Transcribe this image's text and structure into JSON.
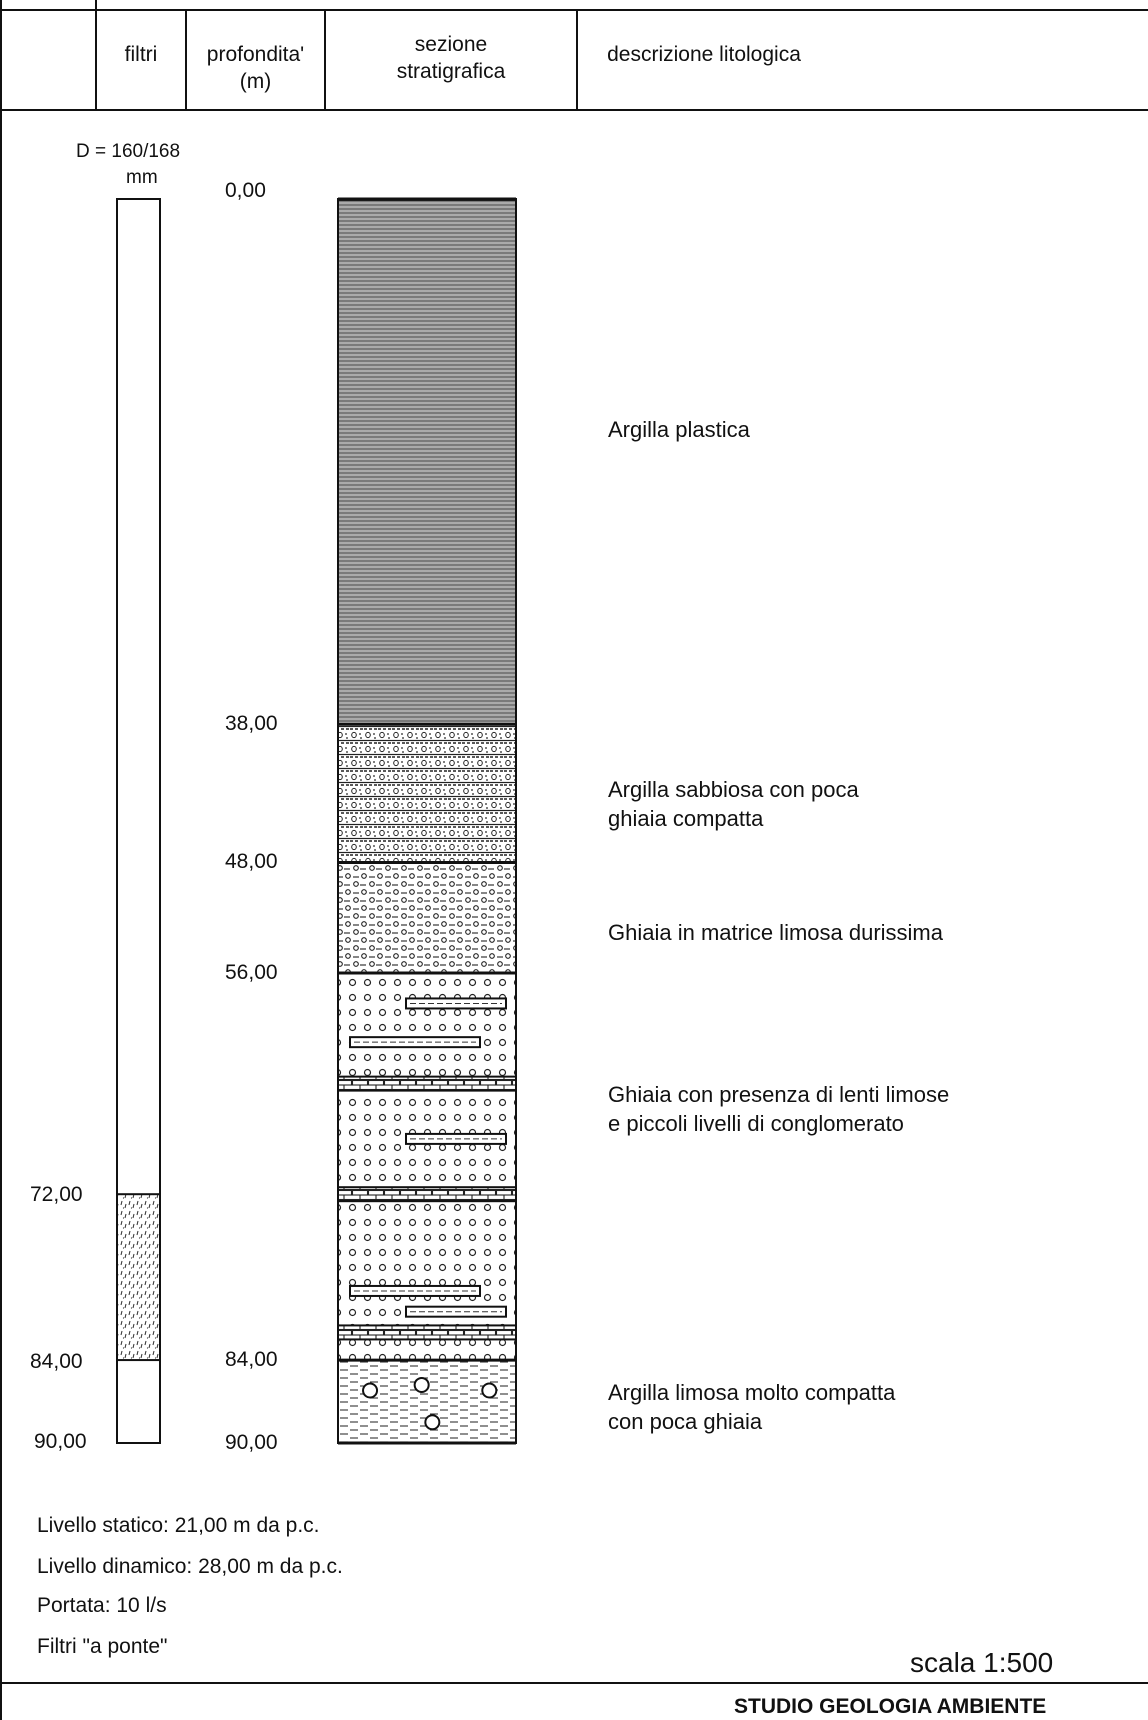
{
  "header": {
    "col_filtri": "filtri",
    "col_profondita": [
      "profondita'",
      "(m)"
    ],
    "col_sezione": [
      "sezione",
      "stratigrafica"
    ],
    "col_descrizione": "descrizione litologica"
  },
  "well": {
    "diameter_label": "D = 160/168",
    "diameter_unit": "mm",
    "total_depth": 90,
    "filter_from": 72,
    "filter_to": 84,
    "filter_top_label": "72,00",
    "filter_bottom_label": "84,00",
    "bottom_label": "90,00"
  },
  "depth_labels": [
    {
      "depth": 0,
      "label": "0,00"
    },
    {
      "depth": 38,
      "label": "38,00"
    },
    {
      "depth": 48,
      "label": "48,00"
    },
    {
      "depth": 56,
      "label": "56,00"
    },
    {
      "depth": 84,
      "label": "84,00"
    },
    {
      "depth": 90,
      "label": "90,00"
    }
  ],
  "layers": [
    {
      "from": 0,
      "to": 38,
      "pattern": "clay",
      "description": [
        "Argilla plastica"
      ]
    },
    {
      "from": 38,
      "to": 48,
      "pattern": "sandy-clay",
      "description": [
        "Argilla sabbiosa con poca",
        "ghiaia compatta"
      ]
    },
    {
      "from": 48,
      "to": 56,
      "pattern": "gravel-silt",
      "description": [
        "Ghiaia in matrice limosa durissima"
      ]
    },
    {
      "from": 56,
      "to": 84,
      "pattern": "gravel-lenses",
      "description": [
        "Ghiaia con presenza di lenti limose",
        "e piccoli livelli di conglomerato"
      ]
    },
    {
      "from": 84,
      "to": 90,
      "pattern": "silty-clay",
      "description": [
        "Argilla limosa molto compatta",
        "con poca ghiaia"
      ]
    }
  ],
  "notes": [
    "Livello statico: 21,00 m da p.c.",
    "Livello dinamico: 28,00 m da p.c.",
    "Portata: 10  l/s",
    "Filtri \"a ponte\""
  ],
  "scale": "scala 1:500",
  "footer": "STUDIO GEOLOGIA AMBIENTE"
}
